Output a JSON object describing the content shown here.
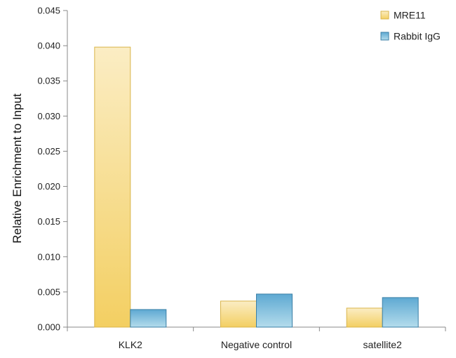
{
  "chart_data": {
    "type": "bar",
    "title": "",
    "xlabel": "",
    "ylabel": "Relative Enrichment to Input",
    "categories": [
      "KLK2",
      "Negative control",
      "satellite2"
    ],
    "series": [
      {
        "name": "MRE11",
        "values": [
          0.0398,
          0.0037,
          0.0027
        ],
        "color": "#f5d67a"
      },
      {
        "name": "Rabbit IgG",
        "values": [
          0.0025,
          0.0047,
          0.0042
        ],
        "color": "#7fbedd"
      }
    ],
    "ylim": [
      0,
      0.045
    ],
    "yticks": [
      "0.000",
      "0.005",
      "0.010",
      "0.015",
      "0.020",
      "0.025",
      "0.030",
      "0.035",
      "0.040",
      "0.045"
    ],
    "grid": false,
    "legend": "top-right"
  }
}
